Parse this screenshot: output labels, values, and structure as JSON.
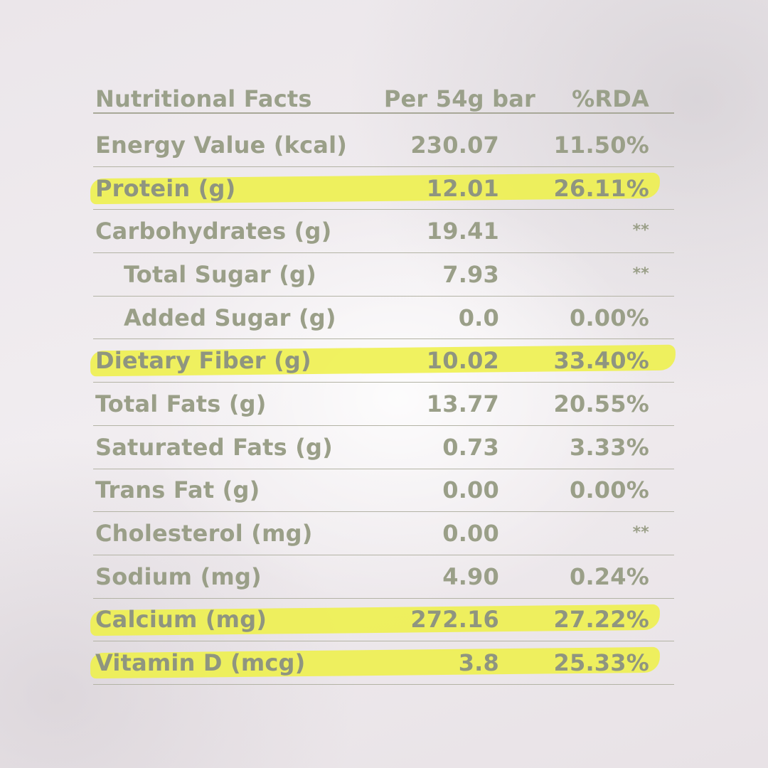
{
  "table": {
    "header": {
      "label": "Nutritional Facts",
      "per": "Per 54g bar",
      "rda": "%RDA"
    },
    "rows": [
      {
        "label": "Energy Value (kcal)",
        "per": "230.07",
        "rda": "11.50%",
        "highlighted": false,
        "indent": false
      },
      {
        "label": "Protein (g)",
        "per": "12.01",
        "rda": "26.11%",
        "highlighted": true,
        "indent": false
      },
      {
        "label": "Carbohydrates (g)",
        "per": "19.41",
        "rda": "**",
        "highlighted": false,
        "indent": false
      },
      {
        "label": "Total Sugar (g)",
        "per": "7.93",
        "rda": "**",
        "highlighted": false,
        "indent": true
      },
      {
        "label": "Added Sugar (g)",
        "per": "0.0",
        "rda": "0.00%",
        "highlighted": false,
        "indent": true
      },
      {
        "label": "Dietary Fiber (g)",
        "per": "10.02",
        "rda": "33.40%",
        "highlighted": true,
        "indent": false
      },
      {
        "label": "Total Fats (g)",
        "per": "13.77",
        "rda": "20.55%",
        "highlighted": false,
        "indent": false
      },
      {
        "label": "Saturated Fats (g)",
        "per": "0.73",
        "rda": "3.33%",
        "highlighted": false,
        "indent": false
      },
      {
        "label": "Trans Fat (g)",
        "per": "0.00",
        "rda": "0.00%",
        "highlighted": false,
        "indent": false
      },
      {
        "label": "Cholesterol (mg)",
        "per": "0.00",
        "rda": "**",
        "highlighted": false,
        "indent": false
      },
      {
        "label": "Sodium (mg)",
        "per": "4.90",
        "rda": "0.24%",
        "highlighted": false,
        "indent": false
      },
      {
        "label": "Calcium (mg)",
        "per": "272.16",
        "rda": "27.22%",
        "highlighted": true,
        "indent": false
      },
      {
        "label": "Vitamin D (mcg)",
        "per": "3.8",
        "rda": "25.33%",
        "highlighted": true,
        "indent": false
      }
    ]
  },
  "colors": {
    "text": "#9a9f88",
    "rule": "#b3b3a5",
    "highlight": "#eef04a"
  }
}
